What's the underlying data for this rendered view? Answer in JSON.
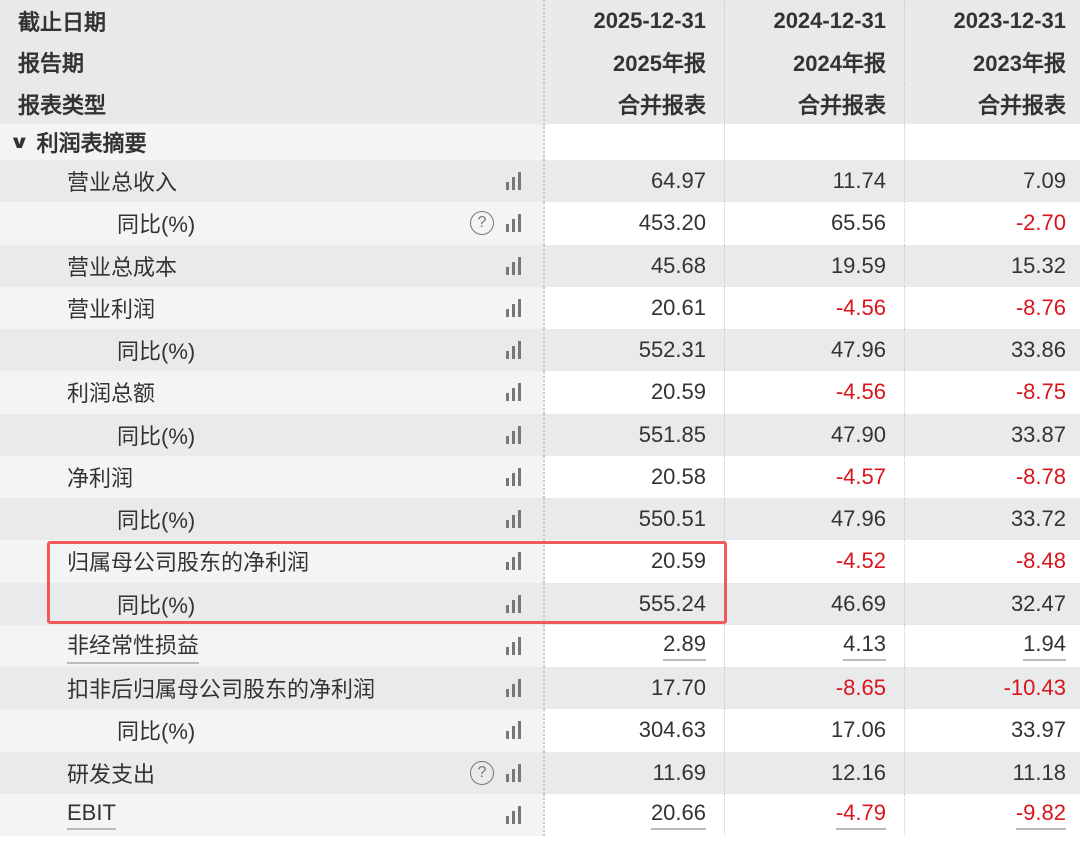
{
  "header": [
    {
      "label": "截止日期",
      "cols": [
        "2025-12-31",
        "2024-12-31",
        "2023-12-31"
      ]
    },
    {
      "label": "报告期",
      "cols": [
        "2025年报",
        "2024年报",
        "2023年报"
      ]
    },
    {
      "label": "报表类型",
      "cols": [
        "合并报表",
        "合并报表",
        "合并报表"
      ]
    }
  ],
  "section": {
    "label": "利润表摘要",
    "icon": "chevron-down-icon"
  },
  "colors": {
    "negative": "#d9141b",
    "highlight": "#f05a5a"
  },
  "rows": [
    {
      "label": "营业总收入",
      "indent": 1,
      "help": false,
      "values": [
        "64.97",
        "11.74",
        "7.09"
      ]
    },
    {
      "label": "同比(%)",
      "indent": 2,
      "help": true,
      "values": [
        "453.20",
        "65.56",
        "-2.70"
      ]
    },
    {
      "label": "营业总成本",
      "indent": 1,
      "help": false,
      "values": [
        "45.68",
        "19.59",
        "15.32"
      ]
    },
    {
      "label": "营业利润",
      "indent": 1,
      "help": false,
      "values": [
        "20.61",
        "-4.56",
        "-8.76"
      ]
    },
    {
      "label": "同比(%)",
      "indent": 2,
      "help": false,
      "values": [
        "552.31",
        "47.96",
        "33.86"
      ]
    },
    {
      "label": "利润总额",
      "indent": 1,
      "help": false,
      "values": [
        "20.59",
        "-4.56",
        "-8.75"
      ]
    },
    {
      "label": "同比(%)",
      "indent": 2,
      "help": false,
      "values": [
        "551.85",
        "47.90",
        "33.87"
      ]
    },
    {
      "label": "净利润",
      "indent": 1,
      "help": false,
      "values": [
        "20.58",
        "-4.57",
        "-8.78"
      ]
    },
    {
      "label": "同比(%)",
      "indent": 2,
      "help": false,
      "values": [
        "550.51",
        "47.96",
        "33.72"
      ]
    },
    {
      "label": "归属母公司股东的净利润",
      "indent": 1,
      "help": false,
      "highlighted": true,
      "values": [
        "20.59",
        "-4.52",
        "-8.48"
      ]
    },
    {
      "label": "同比(%)",
      "indent": 2,
      "help": false,
      "highlighted": true,
      "values": [
        "555.24",
        "46.69",
        "32.47"
      ]
    },
    {
      "label": "非经常性损益",
      "indent": 1,
      "help": false,
      "underlined": true,
      "values": [
        "2.89",
        "4.13",
        "1.94"
      ]
    },
    {
      "label": "扣非后归属母公司股东的净利润",
      "indent": 1,
      "help": false,
      "values": [
        "17.70",
        "-8.65",
        "-10.43"
      ]
    },
    {
      "label": "同比(%)",
      "indent": 2,
      "help": false,
      "values": [
        "304.63",
        "17.06",
        "33.97"
      ]
    },
    {
      "label": "研发支出",
      "indent": 1,
      "help": true,
      "values": [
        "11.69",
        "12.16",
        "11.18"
      ]
    },
    {
      "label": "EBIT",
      "indent": 1,
      "help": false,
      "underlined": true,
      "values": [
        "20.66",
        "-4.79",
        "-9.82"
      ]
    }
  ]
}
